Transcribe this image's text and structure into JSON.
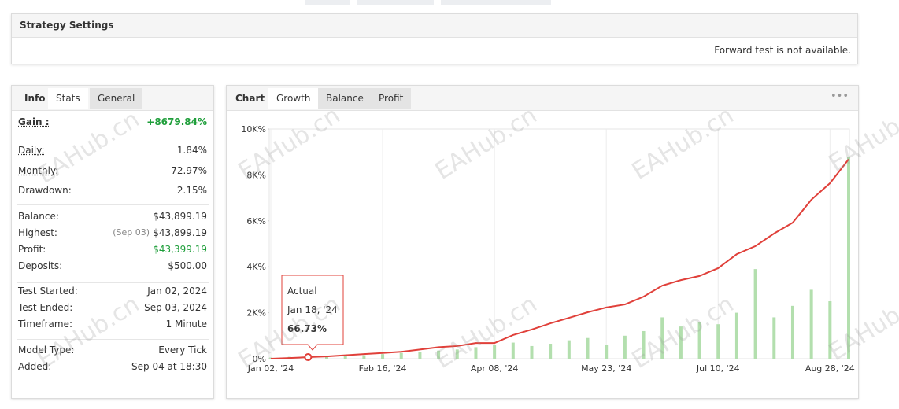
{
  "strategy_settings": {
    "title": "Strategy Settings",
    "note": "Forward test is not available."
  },
  "info_panel": {
    "tabs": [
      "Info",
      "Stats",
      "General"
    ],
    "groups": [
      [
        {
          "label": "Gain :",
          "value": "+8679.84%"
        }
      ],
      [
        {
          "label": "Daily:",
          "value": "1.84%"
        },
        {
          "label": "Monthly:",
          "value": "72.97%"
        },
        {
          "label": "Drawdown:",
          "value": "2.15%"
        }
      ],
      [
        {
          "label": "Balance:",
          "value": "$43,899.19"
        },
        {
          "label": "Highest:",
          "note": "(Sep 03)",
          "value": "$43,899.19"
        },
        {
          "label": "Profit:",
          "value": "$43,399.19"
        },
        {
          "label": "Deposits:",
          "value": "$500.00"
        }
      ],
      [
        {
          "label": "Test Started:",
          "value": "Jan 02, 2024"
        },
        {
          "label": "Test Ended:",
          "value": "Sep 03, 2024"
        },
        {
          "label": "Timeframe:",
          "value": "1 Minute"
        }
      ],
      [
        {
          "label": "Model Type:",
          "value": "Every Tick"
        },
        {
          "label": "Added:",
          "value": "Sep 04 at 18:30"
        }
      ]
    ]
  },
  "chart_panel": {
    "tabs": [
      "Chart",
      "Growth",
      "Balance",
      "Profit"
    ],
    "menu": "•••"
  },
  "watermark": "EAHub.cn",
  "chart_data": {
    "type": "line",
    "categories": [
      "Jan 02, '24",
      null,
      null,
      null,
      null,
      null,
      "Feb 16, '24",
      null,
      null,
      null,
      null,
      null,
      "Apr 08, '24",
      null,
      null,
      null,
      null,
      null,
      "May 23, '24",
      null,
      null,
      null,
      null,
      null,
      "Jul 10, '24",
      null,
      null,
      null,
      null,
      null,
      "Aug 28, '24",
      null
    ],
    "series": [
      {
        "name": "Actual",
        "color": "#e0403a",
        "values": [
          0,
          30,
          66.73,
          100,
          150,
          200,
          250,
          300,
          400,
          500,
          550,
          680,
          680,
          1030,
          1270,
          1540,
          1780,
          2020,
          2230,
          2360,
          2700,
          3180,
          3420,
          3600,
          3940,
          4550,
          4900,
          5450,
          5920,
          6920,
          7640,
          8680
        ]
      },
      {
        "type": "bar",
        "color": "#b3dfae",
        "values": [
          50,
          80,
          100,
          120,
          150,
          150,
          200,
          250,
          300,
          350,
          400,
          500,
          600,
          700,
          550,
          650,
          800,
          900,
          600,
          1000,
          1200,
          1800,
          1400,
          1600,
          1500,
          2000,
          3900,
          1800,
          2300,
          3000,
          2500,
          8800
        ]
      }
    ],
    "tooltip": {
      "date": "Jan 18, '24",
      "label": "66.73%"
    },
    "ylim": [
      0,
      10000
    ],
    "yticks": [
      {
        "value": 0,
        "label": "0%"
      },
      {
        "value": 2000,
        "label": "2K%"
      },
      {
        "value": 4000,
        "label": "4K%"
      },
      {
        "value": 6000,
        "label": "6K%"
      },
      {
        "value": 8000,
        "label": "8K%"
      },
      {
        "value": 10000,
        "label": "10K%"
      }
    ],
    "grid": "x"
  }
}
